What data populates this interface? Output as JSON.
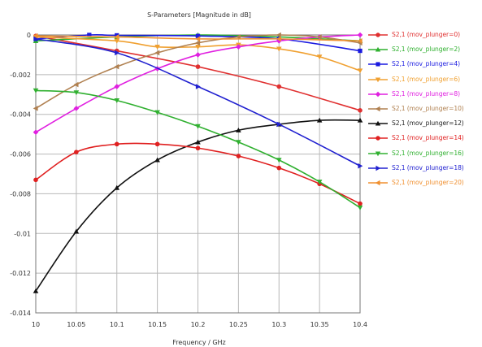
{
  "chart_data": {
    "type": "line",
    "title": "S-Parameters [Magnitude in dB]",
    "xlabel": "Frequency / GHz",
    "ylabel": "",
    "xlim": [
      10,
      10.4
    ],
    "ylim": [
      -0.014,
      0
    ],
    "x_ticks": [
      "10",
      "10.05",
      "10.1",
      "10.15",
      "10.2",
      "10.25",
      "10.3",
      "10.35",
      "10.4"
    ],
    "y_ticks": [
      "0",
      "-0.002",
      "-0.004",
      "-0.006",
      "-0.008",
      "-0.01",
      "-0.012",
      "-0.014"
    ],
    "grid": true,
    "legend_position": "right",
    "series": [
      {
        "name": "S2,1 (mov_plunger=0)",
        "color": "#e03030",
        "marker": "circle",
        "x": [
          10.0,
          10.1,
          10.2,
          10.3,
          10.4
        ],
        "y": [
          -5e-05,
          -0.0008,
          -0.0016,
          -0.0026,
          -0.0038
        ]
      },
      {
        "name": "S2,1 (mov_plunger=2)",
        "color": "#2fb02f",
        "marker": "triangle-up",
        "x": [
          10.0,
          10.1,
          10.2,
          10.3,
          10.4
        ],
        "y": [
          -0.0003,
          -0.0001,
          0.0,
          -0.0001,
          -0.0003
        ]
      },
      {
        "name": "S2,1 (mov_plunger=4)",
        "color": "#1a1ae0",
        "marker": "square",
        "x": [
          10.0,
          10.066,
          10.1,
          10.2,
          10.3,
          10.4
        ],
        "y": [
          -0.0002,
          0.0,
          -2e-05,
          -5e-05,
          -0.0002,
          -0.0008
        ]
      },
      {
        "name": "S2,1 (mov_plunger=6)",
        "color": "#f0a030",
        "marker": "triangle-down",
        "x": [
          10.0,
          10.1,
          10.15,
          10.2,
          10.25,
          10.3,
          10.35,
          10.4
        ],
        "y": [
          -0.0001,
          -0.0003,
          -0.0006,
          -0.0006,
          -0.0005,
          -0.0007,
          -0.0011,
          -0.0018
        ]
      },
      {
        "name": "S2,1 (mov_plunger=8)",
        "color": "#e020e0",
        "marker": "diamond",
        "x": [
          10.0,
          10.05,
          10.1,
          10.15,
          10.2,
          10.25,
          10.3,
          10.35,
          10.4
        ],
        "y": [
          -0.0049,
          -0.0037,
          -0.0026,
          -0.0017,
          -0.001,
          -0.0006,
          -0.0003,
          -0.0001,
          0.0
        ]
      },
      {
        "name": "S2,1 (mov_plunger=10)",
        "color": "#b08050",
        "marker": "triangle-left",
        "x": [
          10.0,
          10.05,
          10.1,
          10.15,
          10.2,
          10.25,
          10.3,
          10.35,
          10.4
        ],
        "y": [
          -0.0037,
          -0.0025,
          -0.0016,
          -0.0009,
          -0.0004,
          -0.0001,
          0.0,
          -0.0001,
          -0.0004
        ]
      },
      {
        "name": "S2,1 (mov_plunger=12)",
        "color": "#101010",
        "marker": "triangle-up",
        "x": [
          10.0,
          10.05,
          10.1,
          10.15,
          10.2,
          10.25,
          10.3,
          10.35,
          10.4
        ],
        "y": [
          -0.0129,
          -0.0099,
          -0.0077,
          -0.0063,
          -0.0054,
          -0.0048,
          -0.0045,
          -0.0043,
          -0.0043
        ]
      },
      {
        "name": "S2,1 (mov_plunger=14)",
        "color": "#e02020",
        "marker": "circle",
        "x": [
          10.0,
          10.05,
          10.1,
          10.15,
          10.2,
          10.25,
          10.3,
          10.35,
          10.4
        ],
        "y": [
          -0.0073,
          -0.0059,
          -0.0055,
          -0.0055,
          -0.0057,
          -0.0061,
          -0.0067,
          -0.0075,
          -0.0085
        ]
      },
      {
        "name": "S2,1 (mov_plunger=16)",
        "color": "#30b030",
        "marker": "triangle-down",
        "x": [
          10.0,
          10.05,
          10.1,
          10.15,
          10.2,
          10.25,
          10.3,
          10.35,
          10.4
        ],
        "y": [
          -0.0028,
          -0.0029,
          -0.0033,
          -0.0039,
          -0.0046,
          -0.0054,
          -0.0063,
          -0.0074,
          -0.0087
        ]
      },
      {
        "name": "S2,1 (mov_plunger=18)",
        "color": "#2020d0",
        "marker": "triangle-right",
        "x": [
          10.0,
          10.1,
          10.2,
          10.3,
          10.4
        ],
        "y": [
          -0.0002,
          -0.0009,
          -0.0026,
          -0.0045,
          -0.0066
        ]
      },
      {
        "name": "S2,1 (mov_plunger=20)",
        "color": "#f09030",
        "marker": "triangle-left",
        "x": [
          10.0,
          10.1,
          10.2,
          10.3,
          10.4
        ],
        "y": [
          -5e-05,
          -0.0001,
          -0.0002,
          -0.0002,
          -0.0003
        ]
      }
    ]
  }
}
